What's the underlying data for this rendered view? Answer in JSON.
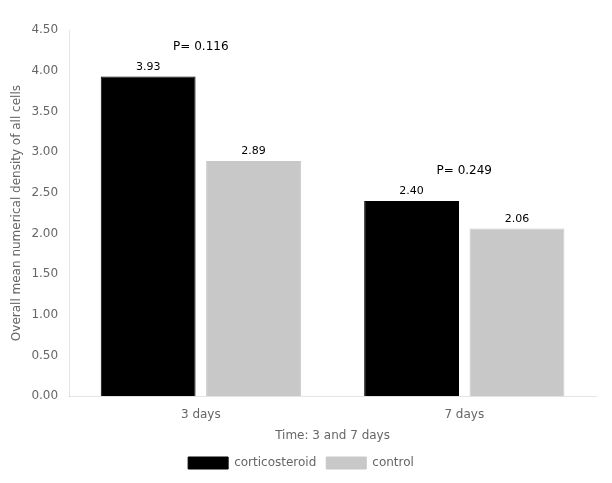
{
  "chart_data": {
    "type": "bar",
    "categories": [
      "3 days",
      "7 days"
    ],
    "series": [
      {
        "name": "corticosteroid",
        "color": "#000000",
        "values": [
          3.93,
          2.4
        ],
        "value_labels": [
          "3.93",
          "2.40"
        ]
      },
      {
        "name": "control",
        "color": "#c8c8c8",
        "values": [
          2.89,
          2.06
        ],
        "value_labels": [
          "2.89",
          "2.06"
        ]
      }
    ],
    "ylabel": "Overall mean numerical density of all cells",
    "xlabel": "Time: 3 and 7 days",
    "ylim": [
      0.0,
      4.5
    ],
    "yticks": [
      {
        "value": 0,
        "label": "0.00"
      },
      {
        "value": 0.5,
        "label": "0.50"
      },
      {
        "value": 1,
        "label": "1.00"
      },
      {
        "value": 1.5,
        "label": "1.50"
      },
      {
        "value": 2,
        "label": "2.00"
      },
      {
        "value": 2.5,
        "label": "2.50"
      },
      {
        "value": 3,
        "label": "3.00"
      },
      {
        "value": 3.5,
        "label": "3.50"
      },
      {
        "value": 4,
        "label": "4.00"
      },
      {
        "value": 4.5,
        "label": "4.50"
      }
    ],
    "annotations": [
      {
        "text": "P= 0.116",
        "category": "3 days"
      },
      {
        "text": "P= 0.249",
        "category": "7 days"
      }
    ],
    "data_labels": true,
    "legend": "bottom",
    "grid": false
  }
}
